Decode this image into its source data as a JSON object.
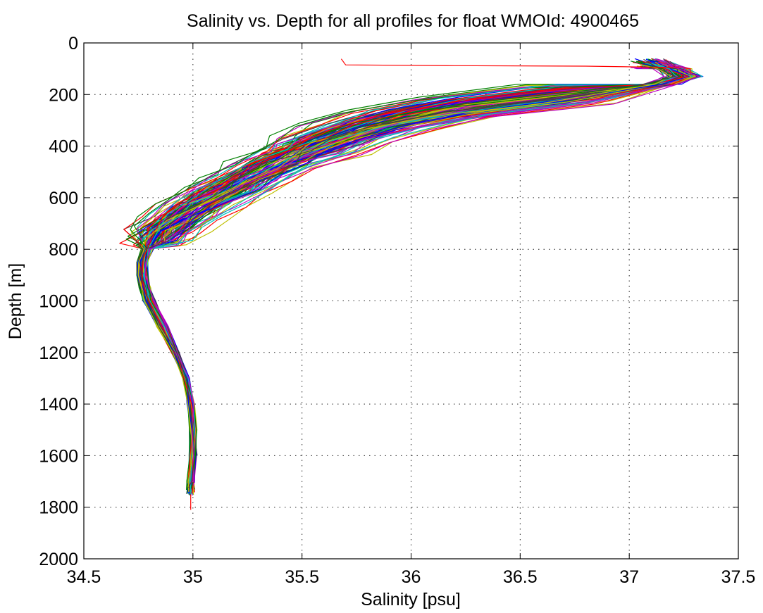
{
  "chart_data": {
    "type": "line",
    "title": "Salinity vs. Depth for all profiles for float WMOId: 4900465",
    "xlabel": "Salinity [psu]",
    "ylabel": "Depth [m]",
    "xlim": [
      34.5,
      37.5
    ],
    "ylim": [
      0,
      2000
    ],
    "y_axis_reversed": true,
    "grid": true,
    "xticks": [
      "34.5",
      "35",
      "35.5",
      "36",
      "36.5",
      "37",
      "37.5"
    ],
    "yticks": [
      "0",
      "200",
      "400",
      "600",
      "800",
      "1000",
      "1200",
      "1400",
      "1600",
      "1800",
      "2000"
    ],
    "series_colors": [
      "#0000ff",
      "#008000",
      "#ff0000",
      "#00bfbf",
      "#bf00bf",
      "#bfbf00",
      "#404040"
    ],
    "representative_profile": {
      "depth": [
        70,
        100,
        130,
        160,
        200,
        250,
        300,
        350,
        400,
        450,
        500,
        550,
        600,
        650,
        700,
        750,
        800,
        850,
        900,
        950,
        1000,
        1100,
        1200,
        1300,
        1400,
        1500,
        1600,
        1700,
        1750
      ],
      "salinity": [
        37.1,
        37.2,
        37.25,
        37.15,
        36.7,
        36.2,
        35.9,
        35.7,
        35.55,
        35.42,
        35.3,
        35.2,
        35.08,
        34.98,
        34.9,
        34.83,
        34.79,
        34.77,
        34.77,
        34.78,
        34.8,
        34.86,
        34.92,
        34.97,
        34.99,
        35.0,
        35.0,
        34.99,
        34.99
      ]
    },
    "outlier_profile": {
      "depth": [
        62,
        85,
        88,
        90,
        95
      ],
      "salinity": [
        35.68,
        35.7,
        36.2,
        36.8,
        37.2
      ]
    },
    "profile_count": 140,
    "max_depth_profile": {
      "depth": [
        1750,
        1780,
        1810
      ],
      "salinity": [
        34.99,
        34.99,
        34.99
      ]
    }
  }
}
